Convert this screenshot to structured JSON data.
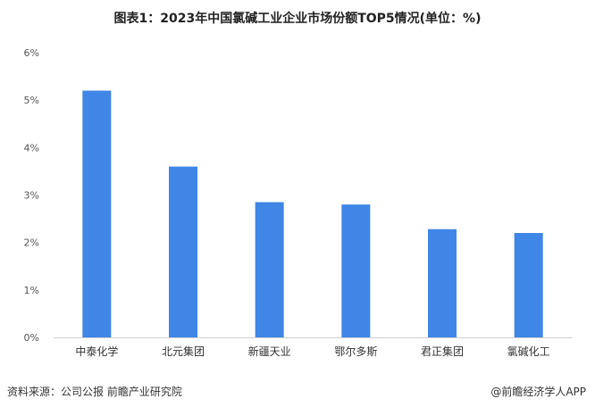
{
  "chart_data": {
    "type": "bar",
    "title": "图表1：2023年中国氯碱工业企业市场份额TOP5情况(单位：%)",
    "categories": [
      "中泰化学",
      "北元集团",
      "新疆天业",
      "鄂尔多斯",
      "君正集团",
      "氯碱化工"
    ],
    "values": [
      5.2,
      3.6,
      2.85,
      2.8,
      2.28,
      2.2
    ],
    "y_ticks": [
      "0%",
      "1%",
      "2%",
      "3%",
      "4%",
      "5%",
      "6%"
    ],
    "ylim": [
      0,
      6
    ],
    "bar_color": "#3f86e6",
    "axis_color": "#d0d0d0",
    "grid": false
  },
  "footer": {
    "source": "资料来源：公司公报 前瞻产业研究院",
    "brand": "@前瞻经济学人APP"
  }
}
